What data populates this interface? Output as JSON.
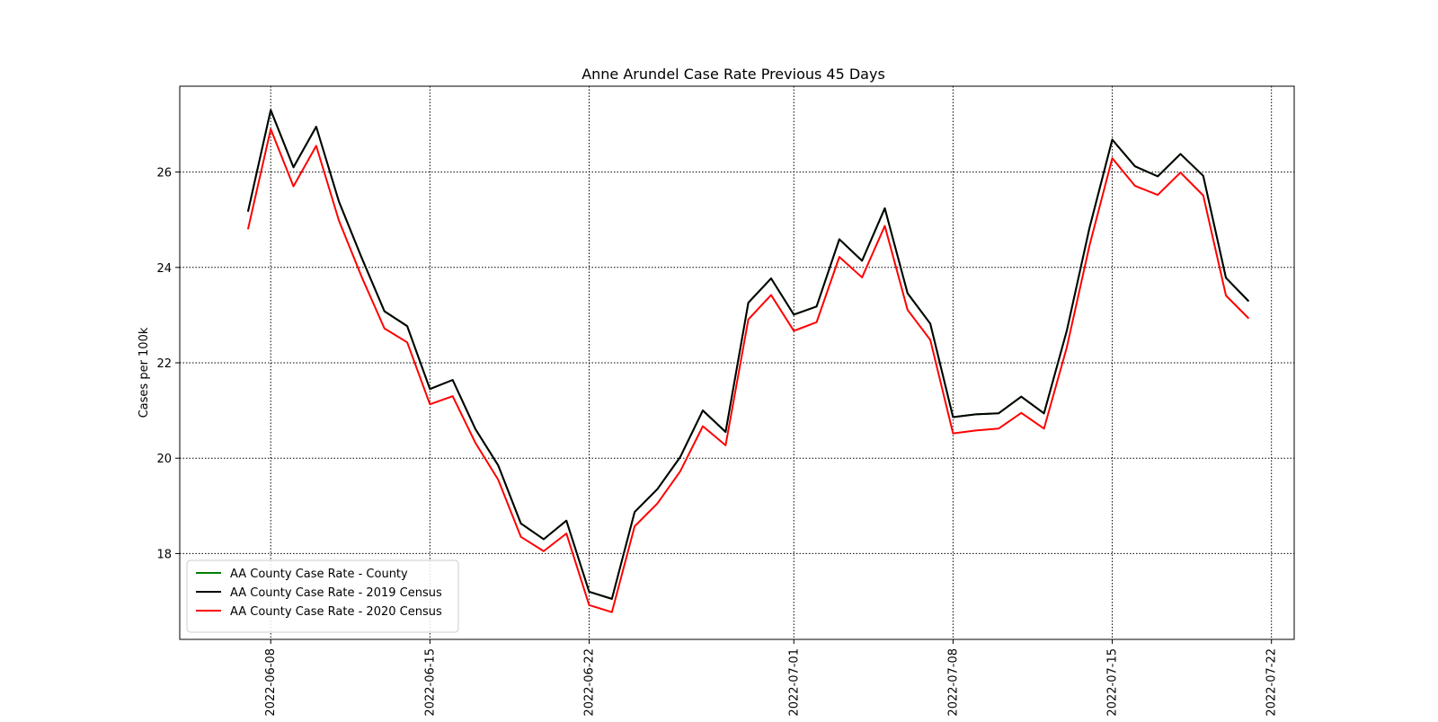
{
  "chart_data": {
    "type": "line",
    "title": "Anne Arundel Case Rate Previous 45 Days",
    "xlabel": "",
    "ylabel": "Cases per 100k",
    "x_type": "date",
    "x_range": [
      "2022-06-04",
      "2022-07-23"
    ],
    "ylim": [
      16.2,
      27.8
    ],
    "y_ticks": [
      18,
      20,
      22,
      24,
      26
    ],
    "x_ticks": [
      "2022-06-08",
      "2022-06-15",
      "2022-06-22",
      "2022-07-01",
      "2022-07-08",
      "2022-07-15",
      "2022-07-22"
    ],
    "grid": true,
    "legend_position": "lower-left",
    "x": [
      "2022-06-07",
      "2022-06-08",
      "2022-06-09",
      "2022-06-10",
      "2022-06-11",
      "2022-06-12",
      "2022-06-13",
      "2022-06-14",
      "2022-06-15",
      "2022-06-16",
      "2022-06-17",
      "2022-06-18",
      "2022-06-19",
      "2022-06-20",
      "2022-06-21",
      "2022-06-22",
      "2022-06-23",
      "2022-06-24",
      "2022-06-25",
      "2022-06-26",
      "2022-06-27",
      "2022-06-28",
      "2022-06-29",
      "2022-06-30",
      "2022-07-01",
      "2022-07-02",
      "2022-07-03",
      "2022-07-04",
      "2022-07-05",
      "2022-07-06",
      "2022-07-07",
      "2022-07-08",
      "2022-07-09",
      "2022-07-10",
      "2022-07-11",
      "2022-07-12",
      "2022-07-13",
      "2022-07-14",
      "2022-07-15",
      "2022-07-16",
      "2022-07-17",
      "2022-07-18",
      "2022-07-19",
      "2022-07-20",
      "2022-07-21"
    ],
    "series": [
      {
        "name": "AA County Case Rate - County",
        "color": "#008000",
        "values": [
          25.17,
          27.3,
          26.1,
          26.95,
          25.38,
          24.2,
          23.08,
          22.77,
          21.45,
          21.64,
          20.61,
          19.85,
          18.63,
          18.3,
          18.69,
          17.2,
          17.05,
          18.87,
          19.35,
          20.02,
          21.0,
          20.55,
          23.26,
          23.77,
          23.01,
          23.18,
          24.59,
          24.14,
          25.24,
          23.46,
          22.82,
          20.86,
          20.92,
          20.94,
          21.29,
          20.94,
          22.67,
          24.83,
          26.68,
          26.12,
          25.91,
          26.38,
          25.92,
          23.78,
          23.29
        ]
      },
      {
        "name": "AA County Case Rate - 2019 Census",
        "color": "#000000",
        "values": [
          25.17,
          27.3,
          26.1,
          26.95,
          25.38,
          24.2,
          23.08,
          22.77,
          21.45,
          21.64,
          20.61,
          19.85,
          18.63,
          18.3,
          18.69,
          17.2,
          17.05,
          18.87,
          19.35,
          20.02,
          21.0,
          20.55,
          23.26,
          23.77,
          23.01,
          23.18,
          24.59,
          24.14,
          25.24,
          23.46,
          22.82,
          20.86,
          20.92,
          20.94,
          21.29,
          20.94,
          22.67,
          24.83,
          26.68,
          26.12,
          25.91,
          26.38,
          25.92,
          23.78,
          23.29
        ]
      },
      {
        "name": "AA County Case Rate - 2020 Census",
        "color": "#ff0000",
        "values": [
          24.8,
          26.9,
          25.7,
          26.55,
          24.98,
          23.8,
          22.72,
          22.43,
          21.13,
          21.3,
          20.32,
          19.55,
          18.35,
          18.05,
          18.42,
          16.92,
          16.77,
          18.57,
          19.05,
          19.72,
          20.67,
          20.27,
          22.91,
          23.42,
          22.67,
          22.85,
          24.22,
          23.79,
          24.87,
          23.11,
          22.48,
          20.52,
          20.58,
          20.62,
          20.95,
          20.62,
          22.32,
          24.46,
          26.29,
          25.71,
          25.52,
          25.99,
          25.51,
          23.41,
          22.93
        ]
      }
    ]
  }
}
